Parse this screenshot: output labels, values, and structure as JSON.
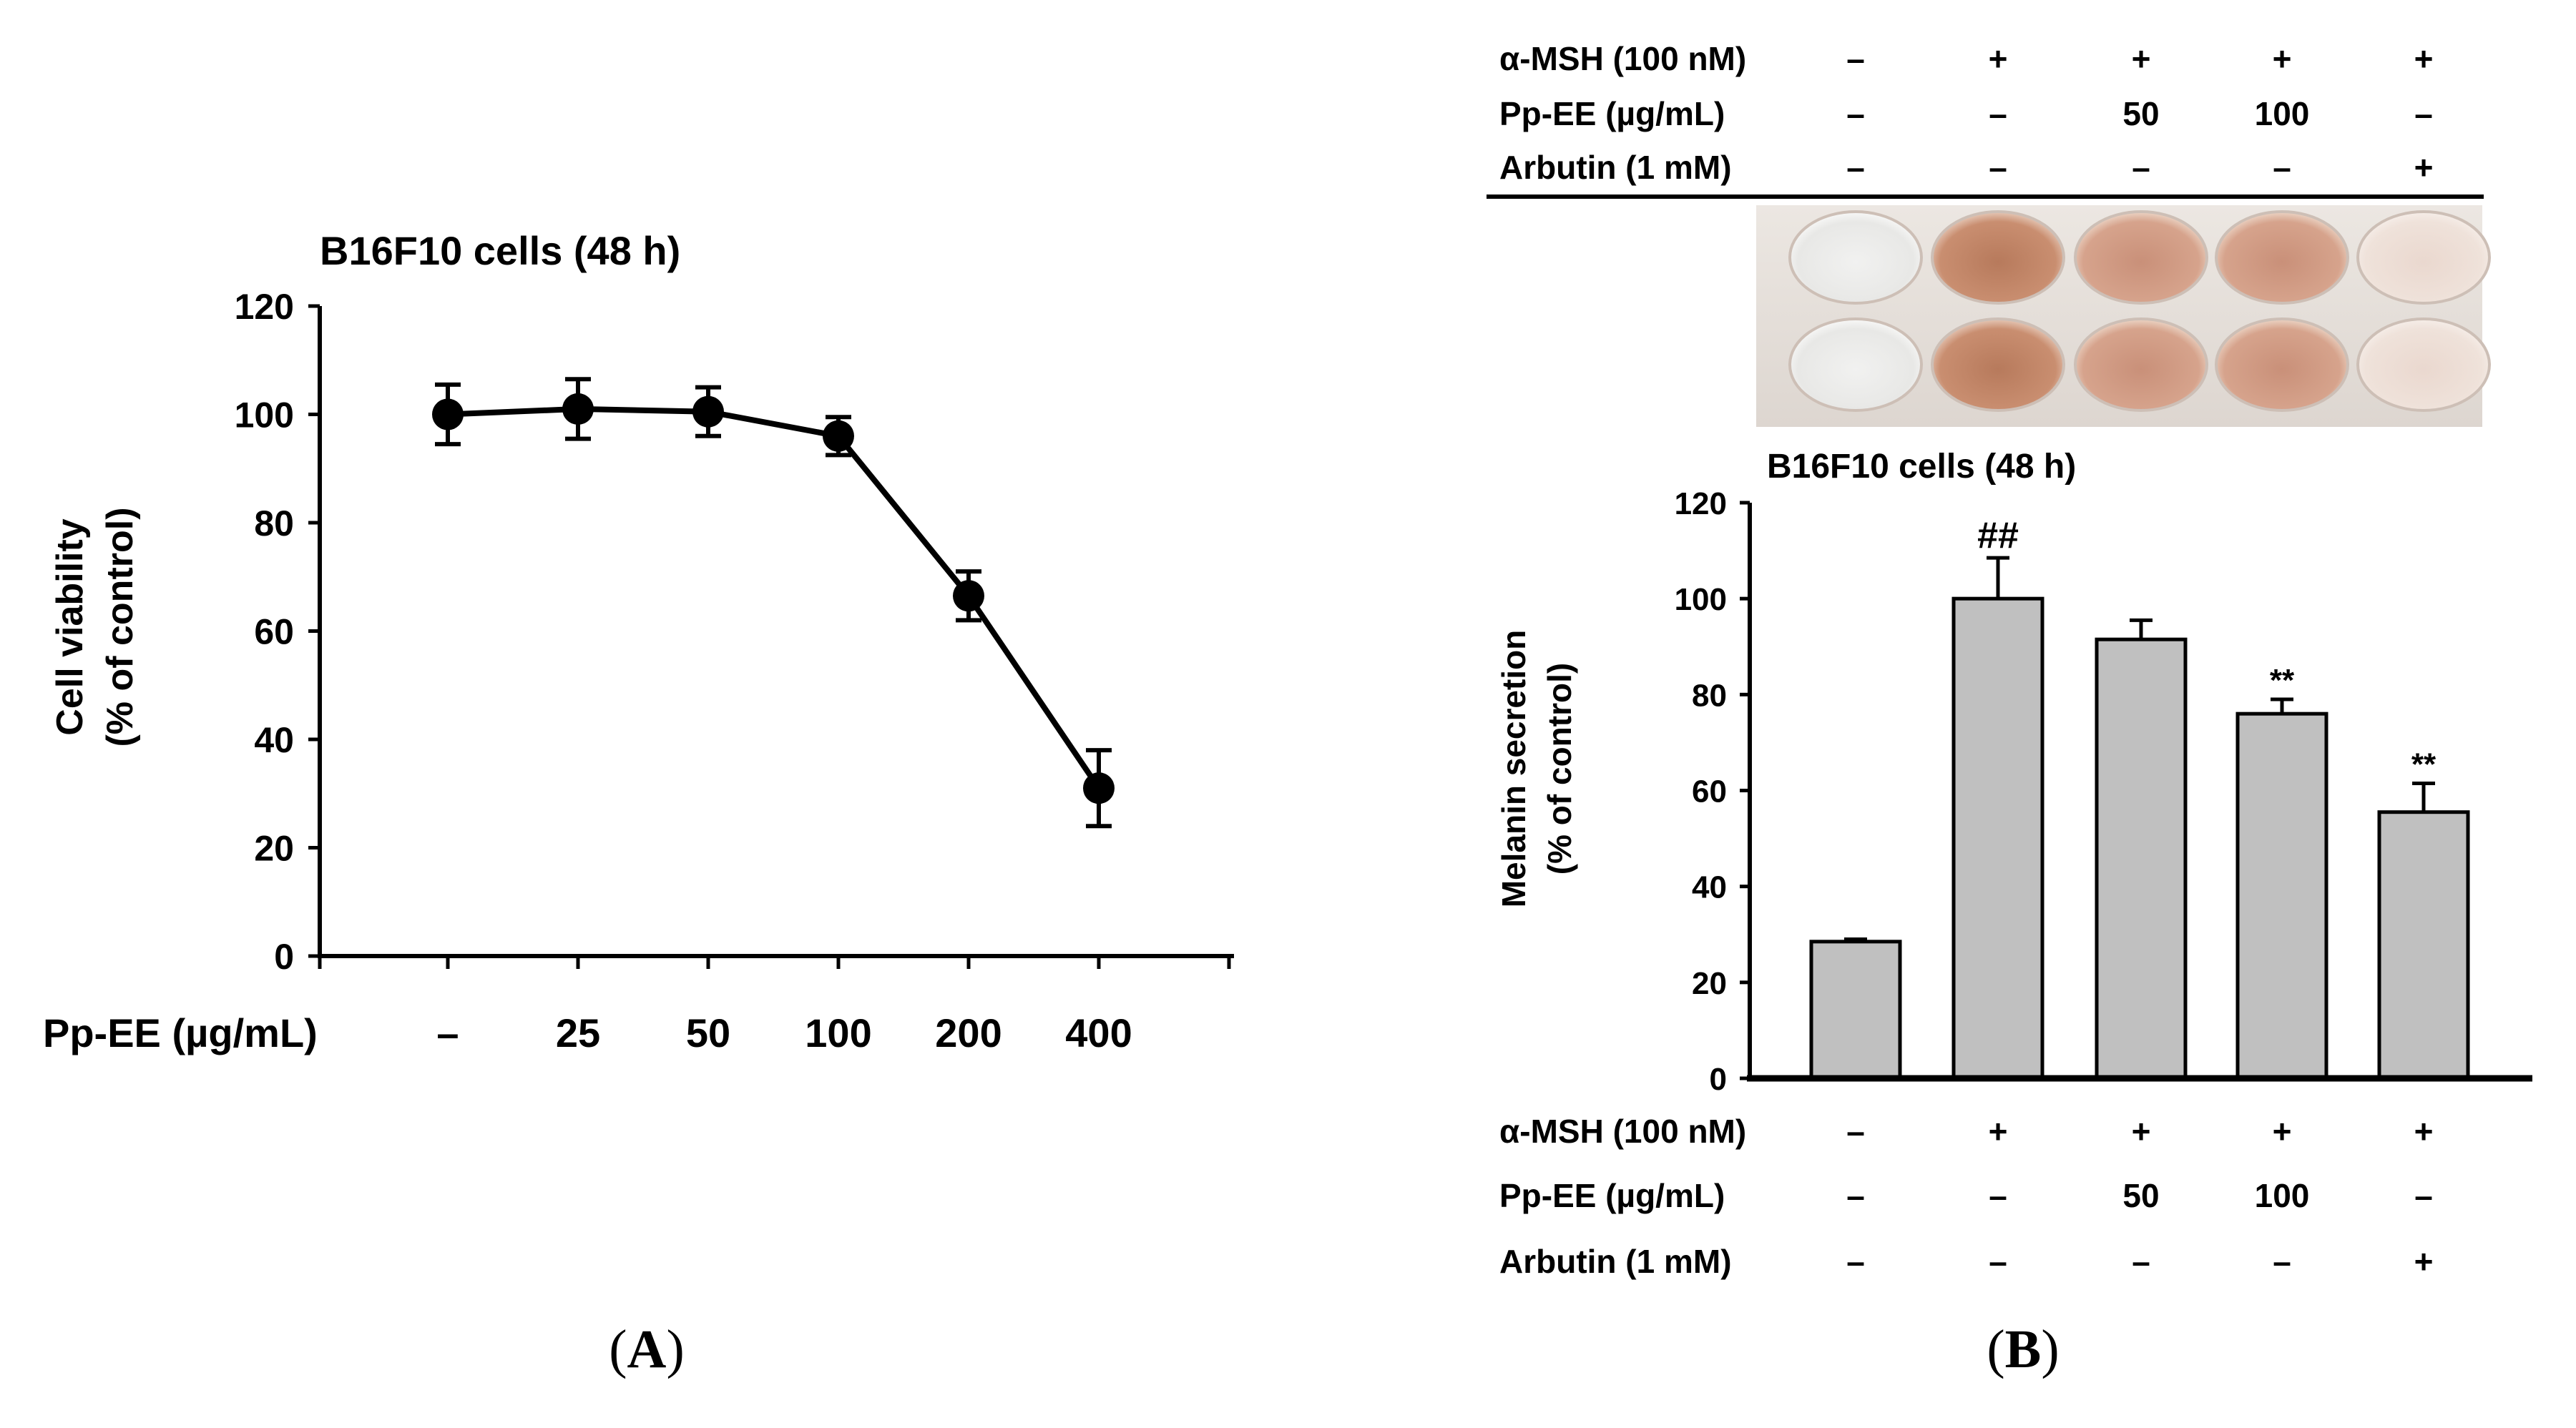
{
  "chart_data": [
    {
      "panel": "A",
      "type": "line",
      "title": "B16F10 cells (48 h)",
      "ylabel_line1": "Cell viability",
      "ylabel_line2": "(% of control)",
      "xlabel": "Pp-EE (µg/mL)",
      "categories": [
        "–",
        "25",
        "50",
        "100",
        "200",
        "400"
      ],
      "values": [
        100,
        101,
        100.5,
        96,
        66.5,
        31
      ],
      "errors": [
        5.5,
        5.5,
        4.5,
        3.5,
        4.5,
        7
      ],
      "ylim": [
        0,
        120
      ],
      "yticks": [
        "0",
        "20",
        "40",
        "60",
        "80",
        "100",
        "120"
      ],
      "panel_label": "A",
      "line_color": "#000000"
    },
    {
      "panel": "B",
      "type": "bar",
      "title": "B16F10 cells (48 h)",
      "ylabel_line1": "Melanin secretion",
      "ylabel_line2": "(% of control)",
      "values": [
        28.5,
        100,
        91.5,
        76,
        55.5
      ],
      "errors": [
        0.5,
        8.5,
        4,
        3,
        6
      ],
      "annotations": [
        "",
        "##",
        "",
        "**",
        "**"
      ],
      "ylim": [
        0,
        120
      ],
      "yticks": [
        "0",
        "20",
        "40",
        "60",
        "80",
        "100",
        "120"
      ],
      "bar_color": "#c0c0c0",
      "treatments": [
        {
          "label": "α-MSH (100 nM)",
          "values": [
            "–",
            "+",
            "+",
            "+",
            "+"
          ]
        },
        {
          "label": "Pp-EE (µg/mL)",
          "values": [
            "–",
            "–",
            "50",
            "100",
            "–"
          ]
        },
        {
          "label": "Arbutin (1 mM)",
          "values": [
            "–",
            "–",
            "–",
            "–",
            "+"
          ]
        }
      ],
      "panel_label": "B"
    }
  ]
}
